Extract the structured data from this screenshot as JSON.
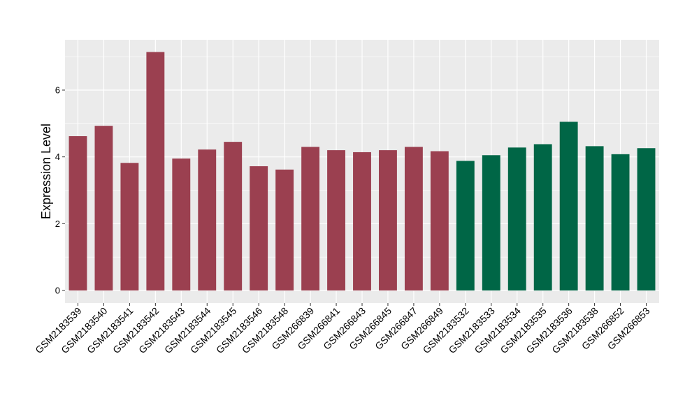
{
  "chart_data": {
    "type": "bar",
    "title": "",
    "xlabel": "",
    "ylabel": "Expression Level",
    "ylim": [
      0,
      7.4
    ],
    "yticks": [
      0,
      2,
      4,
      6
    ],
    "grid": true,
    "legend": "none",
    "categories": [
      "GSM2183539",
      "GSM2183540",
      "GSM2183541",
      "GSM2183542",
      "GSM2183543",
      "GSM2183544",
      "GSM2183545",
      "GSM2183546",
      "GSM2183548",
      "GSM266839",
      "GSM266841",
      "GSM266843",
      "GSM266845",
      "GSM266847",
      "GSM266849",
      "GSM2183532",
      "GSM2183533",
      "GSM2183534",
      "GSM2183535",
      "GSM2183536",
      "GSM2183538",
      "GSM266852",
      "GSM266853"
    ],
    "values": [
      4.62,
      4.93,
      3.82,
      7.14,
      3.95,
      4.22,
      4.45,
      3.72,
      3.62,
      4.3,
      4.2,
      4.14,
      4.2,
      4.3,
      4.17,
      3.88,
      4.05,
      4.28,
      4.38,
      5.05,
      4.32,
      4.08,
      4.26
    ],
    "groups": [
      0,
      0,
      0,
      0,
      0,
      0,
      0,
      0,
      0,
      0,
      0,
      0,
      0,
      0,
      0,
      1,
      1,
      1,
      1,
      1,
      1,
      1,
      1
    ],
    "group_colors": [
      "#9b4050",
      "#006646"
    ],
    "panel_color": "#ebebeb",
    "grid_color": "#ffffff"
  }
}
